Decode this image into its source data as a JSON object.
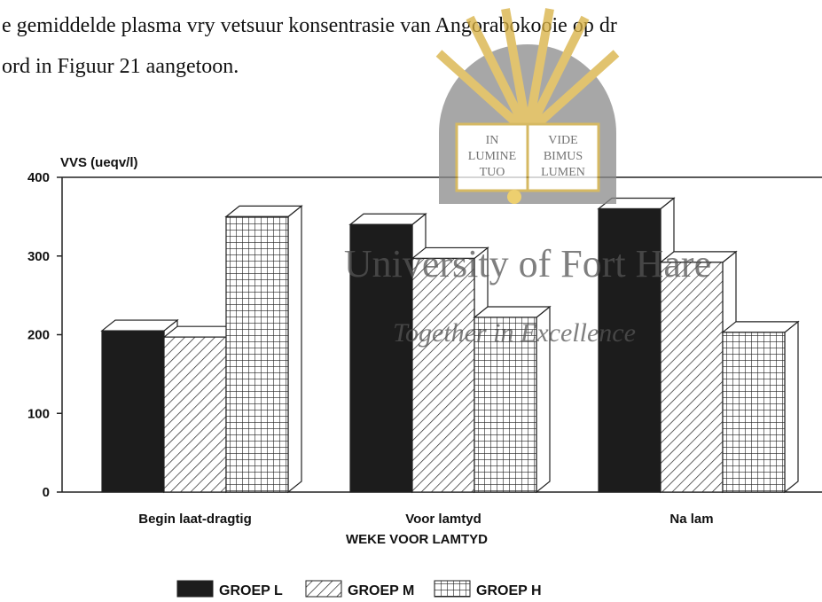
{
  "page": {
    "text_lines": [
      "e gemiddelde plasma vry vetsuur konsentrasie van Angorabokooie op dr",
      "ord in Figuur 21 aangetoon."
    ],
    "watermark": {
      "title": "University of Fort Hare",
      "motto": "Together in Excellence",
      "book_left": [
        "IN",
        "LUMINE",
        "TUO"
      ],
      "book_right": [
        "VIDE",
        "BIMUS",
        "LUMEN"
      ]
    }
  },
  "chart_data": {
    "type": "bar3d",
    "y_label": "VVS (ueqv/l)",
    "x_label": "WEKE VOOR LAMTYD",
    "categories": [
      "Begin laat-dragtig",
      "Voor lamtyd",
      "Na lam"
    ],
    "series": [
      {
        "name": "GROEP L",
        "color": "#1c1c1c",
        "pattern": "solid",
        "values": [
          205,
          340,
          360
        ]
      },
      {
        "name": "GROEP M",
        "color": "#222222",
        "pattern": "hatch",
        "values": [
          197,
          297,
          292
        ]
      },
      {
        "name": "GROEP H",
        "color": "#222222",
        "pattern": "grid",
        "values": [
          350,
          222,
          203
        ]
      }
    ],
    "ylim": [
      0,
      400
    ],
    "yticks": [
      0,
      100,
      200,
      300,
      400
    ],
    "grid": false,
    "legend": "bottom"
  }
}
